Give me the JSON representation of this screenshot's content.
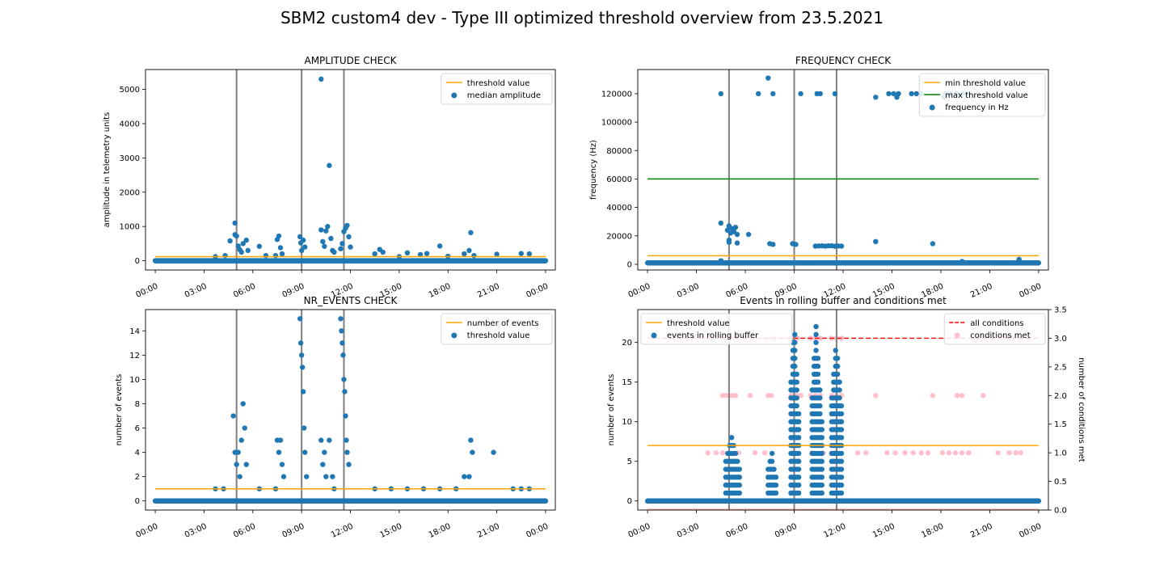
{
  "figure": {
    "title": "SBM2 custom4 dev - Type III optimized threshold overview from 23.5.2021"
  },
  "colors": {
    "points": "#1f77b4",
    "threshold": "#ffa500",
    "max_threshold": "#008000",
    "all_conditions": "#ff0000",
    "conditions_met": "#ffc0cb",
    "marker_line": "#808080"
  },
  "time_ticks": [
    "00:00",
    "03:00",
    "06:00",
    "09:00",
    "12:00",
    "15:00",
    "18:00",
    "21:00",
    "00:00"
  ],
  "vertical_markers_hours": [
    5.0,
    9.0,
    11.6
  ],
  "chart_data": [
    {
      "id": "amplitude",
      "type": "scatter",
      "title": "AMPLITUDE CHECK",
      "xlabel": "",
      "ylabel": "amplitude in telemetry units",
      "xlim": [
        -0.6,
        24.6
      ],
      "ylim": [
        -270,
        5580
      ],
      "yticks": [
        0,
        1000,
        2000,
        3000,
        4000,
        5000
      ],
      "ytick_labels": [
        "0",
        "1000",
        "2000",
        "3000",
        "4000",
        "5000"
      ],
      "legend_position": "upper right",
      "legend": [
        "threshold value",
        "median amplitude"
      ],
      "threshold": 120,
      "baseline": 0,
      "points": [
        [
          3.7,
          120
        ],
        [
          4.3,
          150
        ],
        [
          4.6,
          580
        ],
        [
          4.9,
          1100
        ],
        [
          4.9,
          760
        ],
        [
          5.0,
          720
        ],
        [
          5.1,
          430
        ],
        [
          5.2,
          320
        ],
        [
          5.3,
          250
        ],
        [
          5.4,
          500
        ],
        [
          5.6,
          600
        ],
        [
          5.7,
          300
        ],
        [
          6.4,
          420
        ],
        [
          6.8,
          150
        ],
        [
          7.4,
          150
        ],
        [
          7.5,
          620
        ],
        [
          7.6,
          720
        ],
        [
          7.7,
          380
        ],
        [
          7.8,
          200
        ],
        [
          8.9,
          700
        ],
        [
          8.95,
          520
        ],
        [
          9.0,
          300
        ],
        [
          9.1,
          600
        ],
        [
          9.2,
          400
        ],
        [
          10.2,
          5300
        ],
        [
          10.2,
          900
        ],
        [
          10.3,
          560
        ],
        [
          10.4,
          420
        ],
        [
          10.5,
          870
        ],
        [
          10.6,
          1000
        ],
        [
          10.7,
          2780
        ],
        [
          10.8,
          650
        ],
        [
          10.9,
          300
        ],
        [
          11.0,
          250
        ],
        [
          11.4,
          350
        ],
        [
          11.5,
          500
        ],
        [
          11.6,
          850
        ],
        [
          11.7,
          950
        ],
        [
          11.8,
          1030
        ],
        [
          11.9,
          700
        ],
        [
          12.0,
          400
        ],
        [
          13.5,
          200
        ],
        [
          13.8,
          330
        ],
        [
          14.0,
          250
        ],
        [
          15.0,
          120
        ],
        [
          15.5,
          230
        ],
        [
          16.3,
          180
        ],
        [
          16.7,
          210
        ],
        [
          17.5,
          430
        ],
        [
          18.0,
          130
        ],
        [
          19.0,
          200
        ],
        [
          19.3,
          300
        ],
        [
          19.4,
          820
        ],
        [
          19.6,
          150
        ],
        [
          21.0,
          190
        ],
        [
          22.5,
          210
        ],
        [
          23.0,
          200
        ]
      ]
    },
    {
      "id": "frequency",
      "type": "scatter",
      "title": "FREQUENCY CHECK",
      "xlabel": "",
      "ylabel": "frequency (Hz)",
      "xlim": [
        -0.6,
        24.6
      ],
      "ylim": [
        -4000,
        137000
      ],
      "yticks": [
        0,
        20000,
        40000,
        60000,
        80000,
        100000,
        120000
      ],
      "ytick_labels": [
        "0",
        "20000",
        "40000",
        "60000",
        "80000",
        "100000",
        "120000"
      ],
      "legend_position": "upper right",
      "legend": [
        "min threshold value",
        "max threshold value",
        "frequency in Hz"
      ],
      "min_threshold": 6000,
      "max_threshold": 60000,
      "baseline": 1000,
      "points": [
        [
          4.5,
          120000
        ],
        [
          6.8,
          120000
        ],
        [
          7.4,
          131000
        ],
        [
          7.7,
          120000
        ],
        [
          9.4,
          120000
        ],
        [
          10.4,
          120000
        ],
        [
          10.6,
          120000
        ],
        [
          11.5,
          120000
        ],
        [
          14.0,
          117500
        ],
        [
          14.8,
          120000
        ],
        [
          15.1,
          120000
        ],
        [
          15.3,
          117500
        ],
        [
          15.4,
          120000
        ],
        [
          16.2,
          120000
        ],
        [
          16.5,
          120000
        ],
        [
          16.8,
          120000
        ],
        [
          18.2,
          117500
        ],
        [
          18.3,
          120000
        ],
        [
          18.6,
          120000
        ],
        [
          19.0,
          120000
        ],
        [
          19.3,
          120000
        ],
        [
          19.6,
          120000
        ],
        [
          4.5,
          29000
        ],
        [
          4.9,
          24000
        ],
        [
          5.0,
          27000
        ],
        [
          5.1,
          22000
        ],
        [
          5.2,
          25000
        ],
        [
          5.3,
          23000
        ],
        [
          5.4,
          26000
        ],
        [
          5.5,
          21000
        ],
        [
          5.0,
          17000
        ],
        [
          5.0,
          15500
        ],
        [
          5.5,
          15000
        ],
        [
          6.2,
          21000
        ],
        [
          7.5,
          14500
        ],
        [
          7.7,
          14000
        ],
        [
          8.9,
          14500
        ],
        [
          9.1,
          14000
        ],
        [
          10.3,
          12800
        ],
        [
          10.5,
          12900
        ],
        [
          10.7,
          13000
        ],
        [
          10.9,
          12800
        ],
        [
          11.1,
          13000
        ],
        [
          11.3,
          13000
        ],
        [
          11.5,
          12700
        ],
        [
          11.7,
          12900
        ],
        [
          11.9,
          12800
        ],
        [
          14.0,
          16000
        ],
        [
          17.5,
          14500
        ],
        [
          4.5,
          2500
        ],
        [
          19.3,
          2000
        ],
        [
          22.8,
          3500
        ]
      ]
    },
    {
      "id": "nr_events",
      "type": "scatter",
      "title": "NR_EVENTS CHECK",
      "xlabel": "",
      "ylabel": "number of events",
      "xlim": [
        -0.6,
        24.6
      ],
      "ylim": [
        -0.75,
        15.75
      ],
      "yticks": [
        0,
        2,
        4,
        6,
        8,
        10,
        12,
        14
      ],
      "ytick_labels": [
        "0",
        "2",
        "4",
        "6",
        "8",
        "10",
        "12",
        "14"
      ],
      "legend_position": "upper right",
      "legend": [
        "number of events",
        "threshold value"
      ],
      "threshold": 1,
      "baseline": 0,
      "points": [
        [
          3.7,
          1
        ],
        [
          4.2,
          1
        ],
        [
          4.8,
          7
        ],
        [
          4.9,
          4
        ],
        [
          5.0,
          3
        ],
        [
          5.1,
          4
        ],
        [
          5.2,
          2
        ],
        [
          5.3,
          5
        ],
        [
          5.4,
          8
        ],
        [
          5.5,
          6
        ],
        [
          5.6,
          3
        ],
        [
          6.4,
          1
        ],
        [
          7.4,
          1
        ],
        [
          7.5,
          5
        ],
        [
          7.6,
          4
        ],
        [
          7.7,
          5
        ],
        [
          7.8,
          3
        ],
        [
          7.9,
          2
        ],
        [
          8.9,
          15
        ],
        [
          8.95,
          13
        ],
        [
          9.0,
          12
        ],
        [
          9.05,
          11
        ],
        [
          9.1,
          9
        ],
        [
          9.15,
          6
        ],
        [
          9.2,
          4
        ],
        [
          9.3,
          2
        ],
        [
          10.2,
          5
        ],
        [
          10.3,
          3
        ],
        [
          10.4,
          4
        ],
        [
          10.5,
          2
        ],
        [
          10.7,
          5
        ],
        [
          10.9,
          2
        ],
        [
          11.0,
          1
        ],
        [
          11.4,
          15
        ],
        [
          11.45,
          14
        ],
        [
          11.5,
          13
        ],
        [
          11.55,
          12
        ],
        [
          11.6,
          10
        ],
        [
          11.65,
          9
        ],
        [
          11.7,
          7
        ],
        [
          11.75,
          5
        ],
        [
          11.8,
          4
        ],
        [
          11.9,
          3
        ],
        [
          13.5,
          1
        ],
        [
          14.5,
          1
        ],
        [
          15.5,
          1
        ],
        [
          16.5,
          1
        ],
        [
          17.5,
          1
        ],
        [
          18.5,
          1
        ],
        [
          19.0,
          2
        ],
        [
          19.3,
          2
        ],
        [
          19.4,
          5
        ],
        [
          19.5,
          4
        ],
        [
          20.8,
          4
        ],
        [
          22.0,
          1
        ],
        [
          22.5,
          1
        ],
        [
          23.0,
          1
        ]
      ]
    },
    {
      "id": "rolling_buffer",
      "type": "scatter",
      "title": "Events in rolling buffer and conditions met",
      "xlabel": "",
      "ylabel": "number of events",
      "ylabel_right": "number of conditions met",
      "xlim": [
        -0.6,
        24.6
      ],
      "ylim": [
        -1.15,
        24.15
      ],
      "yticks": [
        0,
        5,
        10,
        15,
        20
      ],
      "ytick_labels": [
        "0",
        "5",
        "10",
        "15",
        "20"
      ],
      "ylim_right": [
        0,
        3.5
      ],
      "yticks_right": [
        0.0,
        0.5,
        1.0,
        1.5,
        2.0,
        2.5,
        3.0,
        3.5
      ],
      "ytick_labels_right": [
        "0.0",
        "0.5",
        "1.0",
        "1.5",
        "2.0",
        "2.5",
        "3.0",
        "3.5"
      ],
      "legend_left_position": "upper left",
      "legend_left": [
        "threshold value",
        "events in rolling buffer"
      ],
      "legend_right_position": "upper right",
      "legend_right": [
        "all conditions",
        "conditions met"
      ],
      "threshold": 7,
      "all_conditions": 3,
      "baseline": 0,
      "event_clusters": [
        {
          "start": 4.8,
          "end": 5.7,
          "max": 8
        },
        {
          "start": 7.4,
          "end": 7.9,
          "max": 6
        },
        {
          "start": 8.8,
          "end": 9.3,
          "max": 23
        },
        {
          "start": 10.1,
          "end": 10.7,
          "max": 22
        },
        {
          "start": 11.3,
          "end": 12.0,
          "max": 20
        }
      ],
      "conditions_met": [
        [
          3.7,
          1
        ],
        [
          4.2,
          1
        ],
        [
          4.6,
          2
        ],
        [
          4.8,
          2
        ],
        [
          5.0,
          2
        ],
        [
          5.2,
          2
        ],
        [
          5.4,
          2
        ],
        [
          4.7,
          3
        ],
        [
          5.0,
          3
        ],
        [
          5.3,
          3
        ],
        [
          4.6,
          1
        ],
        [
          5.6,
          1
        ],
        [
          6.3,
          2
        ],
        [
          6.6,
          1
        ],
        [
          7.4,
          2
        ],
        [
          7.6,
          2
        ],
        [
          7.6,
          3
        ],
        [
          7.8,
          3
        ],
        [
          7.2,
          1
        ],
        [
          8.8,
          3
        ],
        [
          9.0,
          3
        ],
        [
          9.2,
          3
        ],
        [
          8.8,
          2
        ],
        [
          9.0,
          2
        ],
        [
          9.2,
          2
        ],
        [
          9.4,
          2
        ],
        [
          8.9,
          1
        ],
        [
          10.0,
          3
        ],
        [
          10.3,
          3
        ],
        [
          10.6,
          3
        ],
        [
          10.0,
          2
        ],
        [
          10.3,
          2
        ],
        [
          10.6,
          2
        ],
        [
          10.8,
          1
        ],
        [
          10.1,
          1
        ],
        [
          11.3,
          3
        ],
        [
          11.6,
          3
        ],
        [
          11.9,
          3
        ],
        [
          11.3,
          2
        ],
        [
          11.6,
          2
        ],
        [
          11.9,
          2
        ],
        [
          11.5,
          1
        ],
        [
          12.9,
          1
        ],
        [
          13.4,
          1
        ],
        [
          14.0,
          2
        ],
        [
          14.7,
          1
        ],
        [
          15.2,
          1
        ],
        [
          15.8,
          1
        ],
        [
          16.3,
          1
        ],
        [
          16.8,
          1
        ],
        [
          17.2,
          1
        ],
        [
          17.5,
          2
        ],
        [
          18.1,
          1
        ],
        [
          18.5,
          1
        ],
        [
          18.9,
          1
        ],
        [
          19.0,
          2
        ],
        [
          19.3,
          2
        ],
        [
          19.3,
          1
        ],
        [
          19.7,
          1
        ],
        [
          20.6,
          2
        ],
        [
          21.5,
          1
        ],
        [
          22.2,
          1
        ],
        [
          22.6,
          1
        ],
        [
          22.9,
          1
        ]
      ]
    }
  ]
}
